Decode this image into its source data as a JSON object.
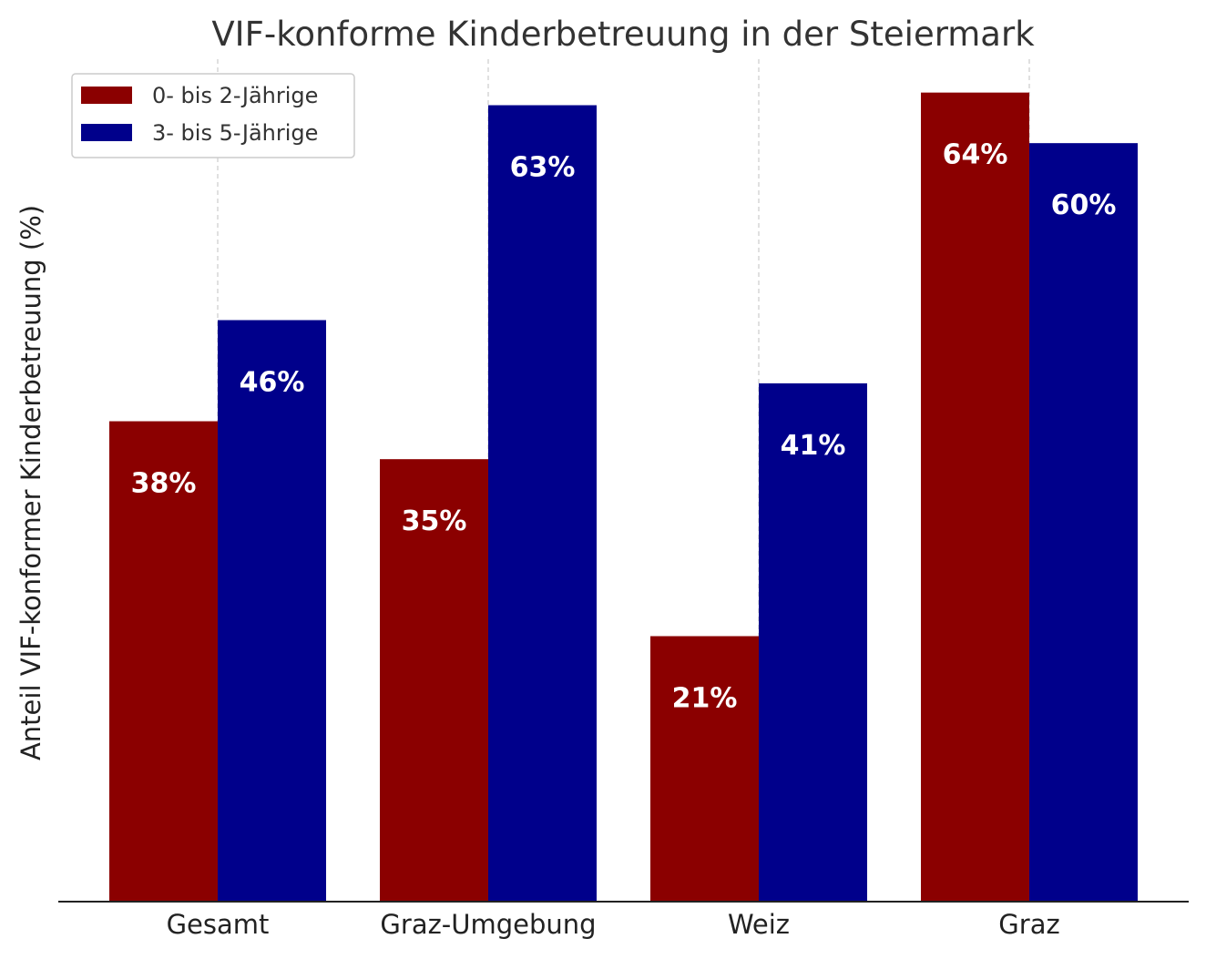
{
  "chart_data": {
    "type": "bar",
    "title": "VIF-konforme Kinderbetreuung in der Steiermark",
    "xlabel": "",
    "ylabel": "Anteil VIF-konformer Kinderbetreuung (%)",
    "ylim": [
      0,
      67
    ],
    "grid": "vertical dashed",
    "legend_position": "top-left",
    "categories": [
      "Gesamt",
      "Graz-Umgebung",
      "Weiz",
      "Graz"
    ],
    "series": [
      {
        "name": "0- bis 2-Jährige",
        "color": "#8b0000",
        "values": [
          38,
          35,
          21,
          64
        ],
        "labels": [
          "38%",
          "35%",
          "21%",
          "64%"
        ]
      },
      {
        "name": "3- bis 5-Jährige",
        "color": "#00008b",
        "values": [
          46,
          63,
          41,
          60
        ],
        "labels": [
          "46%",
          "63%",
          "41%",
          "60%"
        ]
      }
    ]
  }
}
